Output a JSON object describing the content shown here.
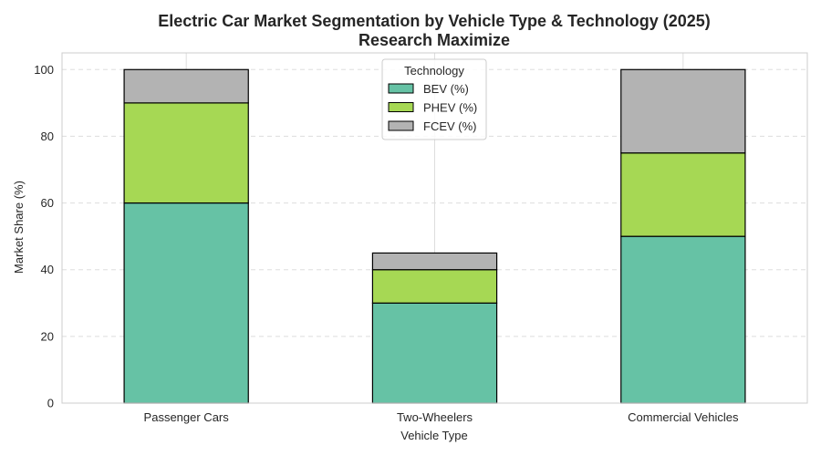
{
  "chart_data": {
    "type": "bar",
    "stacked": true,
    "title": "Electric Car Market Segmentation by Vehicle Type & Technology (2025)",
    "subtitle": "Research Maximize",
    "xlabel": "Vehicle Type",
    "ylabel": "Market Share (%)",
    "ylim": [
      0,
      105
    ],
    "yticks": [
      0,
      20,
      40,
      60,
      80,
      100
    ],
    "grid": "y-dashed",
    "categories": [
      "Passenger Cars",
      "Two-Wheelers",
      "Commercial Vehicles"
    ],
    "series": [
      {
        "name": "BEV (%)",
        "values": [
          60,
          30,
          50
        ],
        "color": "#66c2a5"
      },
      {
        "name": "PHEV (%)",
        "values": [
          30,
          10,
          25
        ],
        "color": "#a6d854"
      },
      {
        "name": "FCEV (%)",
        "values": [
          10,
          5,
          25
        ],
        "color": "#b3b3b3"
      }
    ],
    "legend": {
      "title": "Technology",
      "placement": "top-center"
    }
  }
}
